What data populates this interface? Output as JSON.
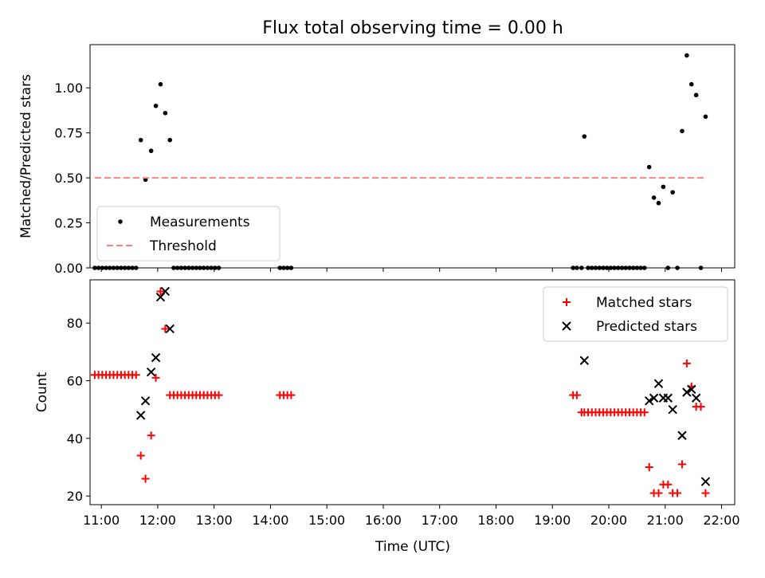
{
  "chart_data": [
    {
      "type": "scatter",
      "title": "Flux total observing time = 0.00 h",
      "xlabel": "",
      "ylabel": "Matched/Predicted stars",
      "ylim": [
        0,
        1.24
      ],
      "yticks": [
        "0.00",
        "0.25",
        "0.50",
        "0.75",
        "1.00"
      ],
      "xticks": [
        "11:00",
        "12:00",
        "13:00",
        "14:00",
        "15:00",
        "16:00",
        "17:00",
        "18:00",
        "19:00",
        "20:00",
        "21:00",
        "22:00"
      ],
      "xlim": [
        "10:48",
        "22:14"
      ],
      "legend_position": "lower-left",
      "series": [
        {
          "name": "Measurements",
          "style": "point",
          "color": "#000000",
          "points": [
            [
              "10:53",
              0
            ],
            [
              "10:57",
              0
            ],
            [
              "11:01",
              0
            ],
            [
              "11:05",
              0
            ],
            [
              "11:09",
              0
            ],
            [
              "11:13",
              0
            ],
            [
              "11:17",
              0
            ],
            [
              "11:21",
              0
            ],
            [
              "11:25",
              0
            ],
            [
              "11:29",
              0
            ],
            [
              "11:33",
              0
            ],
            [
              "11:37",
              0
            ],
            [
              "11:42",
              0.71
            ],
            [
              "11:47",
              0.49
            ],
            [
              "11:53",
              0.65
            ],
            [
              "11:58",
              0.9
            ],
            [
              "12:03",
              1.02
            ],
            [
              "12:08",
              0.86
            ],
            [
              "12:13",
              0.71
            ],
            [
              "12:17",
              0
            ],
            [
              "12:21",
              0
            ],
            [
              "12:25",
              0
            ],
            [
              "12:29",
              0
            ],
            [
              "12:33",
              0
            ],
            [
              "12:37",
              0
            ],
            [
              "12:41",
              0
            ],
            [
              "12:45",
              0
            ],
            [
              "12:49",
              0
            ],
            [
              "12:53",
              0
            ],
            [
              "12:57",
              0
            ],
            [
              "13:01",
              0
            ],
            [
              "13:05",
              0
            ],
            [
              "14:10",
              0
            ],
            [
              "14:14",
              0
            ],
            [
              "14:18",
              0
            ],
            [
              "14:22",
              0
            ],
            [
              "19:22",
              0
            ],
            [
              "19:26",
              0
            ],
            [
              "19:31",
              0
            ],
            [
              "19:34",
              0.73
            ],
            [
              "19:38",
              0
            ],
            [
              "19:42",
              0
            ],
            [
              "19:46",
              0
            ],
            [
              "19:50",
              0
            ],
            [
              "19:54",
              0
            ],
            [
              "19:58",
              0
            ],
            [
              "20:02",
              0
            ],
            [
              "20:06",
              0
            ],
            [
              "20:10",
              0
            ],
            [
              "20:14",
              0
            ],
            [
              "20:18",
              0
            ],
            [
              "20:22",
              0
            ],
            [
              "20:26",
              0
            ],
            [
              "20:30",
              0
            ],
            [
              "20:34",
              0
            ],
            [
              "20:38",
              0
            ],
            [
              "20:43",
              0.56
            ],
            [
              "20:48",
              0.39
            ],
            [
              "20:53",
              0.36
            ],
            [
              "20:58",
              0.45
            ],
            [
              "21:03",
              0
            ],
            [
              "21:08",
              0.42
            ],
            [
              "21:13",
              0
            ],
            [
              "21:18",
              0.76
            ],
            [
              "21:23",
              1.18
            ],
            [
              "21:28",
              1.02
            ],
            [
              "21:33",
              0.96
            ],
            [
              "21:38",
              0
            ],
            [
              "21:43",
              0.84
            ]
          ]
        },
        {
          "name": "Threshold",
          "style": "dashed-line",
          "color": "#ff7f7f",
          "points": [
            [
              "10:53",
              0.5
            ],
            [
              "21:43",
              0.5
            ]
          ]
        }
      ]
    },
    {
      "type": "scatter",
      "title": "",
      "xlabel": "Time (UTC)",
      "ylabel": "Count",
      "ylim": [
        17,
        95
      ],
      "yticks": [
        "20",
        "40",
        "60",
        "80"
      ],
      "xticks": [
        "11:00",
        "12:00",
        "13:00",
        "14:00",
        "15:00",
        "16:00",
        "17:00",
        "18:00",
        "19:00",
        "20:00",
        "21:00",
        "22:00"
      ],
      "xlim": [
        "10:48",
        "22:14"
      ],
      "legend_position": "upper-right",
      "series": [
        {
          "name": "Matched stars",
          "style": "plus",
          "color": "#ff0000",
          "points": [
            [
              "10:53",
              62
            ],
            [
              "10:57",
              62
            ],
            [
              "11:01",
              62
            ],
            [
              "11:05",
              62
            ],
            [
              "11:09",
              62
            ],
            [
              "11:13",
              62
            ],
            [
              "11:17",
              62
            ],
            [
              "11:21",
              62
            ],
            [
              "11:25",
              62
            ],
            [
              "11:29",
              62
            ],
            [
              "11:33",
              62
            ],
            [
              "11:37",
              62
            ],
            [
              "11:42",
              34
            ],
            [
              "11:47",
              26
            ],
            [
              "11:53",
              41
            ],
            [
              "11:58",
              61
            ],
            [
              "12:03",
              91
            ],
            [
              "12:08",
              78
            ],
            [
              "12:13",
              55
            ],
            [
              "12:17",
              55
            ],
            [
              "12:21",
              55
            ],
            [
              "12:25",
              55
            ],
            [
              "12:29",
              55
            ],
            [
              "12:33",
              55
            ],
            [
              "12:37",
              55
            ],
            [
              "12:41",
              55
            ],
            [
              "12:45",
              55
            ],
            [
              "12:49",
              55
            ],
            [
              "12:53",
              55
            ],
            [
              "12:57",
              55
            ],
            [
              "13:01",
              55
            ],
            [
              "13:05",
              55
            ],
            [
              "14:10",
              55
            ],
            [
              "14:14",
              55
            ],
            [
              "14:18",
              55
            ],
            [
              "14:22",
              55
            ],
            [
              "19:22",
              55
            ],
            [
              "19:26",
              55
            ],
            [
              "19:31",
              49
            ],
            [
              "19:34",
              49
            ],
            [
              "19:38",
              49
            ],
            [
              "19:42",
              49
            ],
            [
              "19:46",
              49
            ],
            [
              "19:50",
              49
            ],
            [
              "19:54",
              49
            ],
            [
              "19:58",
              49
            ],
            [
              "20:02",
              49
            ],
            [
              "20:06",
              49
            ],
            [
              "20:10",
              49
            ],
            [
              "20:14",
              49
            ],
            [
              "20:18",
              49
            ],
            [
              "20:22",
              49
            ],
            [
              "20:26",
              49
            ],
            [
              "20:30",
              49
            ],
            [
              "20:34",
              49
            ],
            [
              "20:38",
              49
            ],
            [
              "20:43",
              30
            ],
            [
              "20:48",
              21
            ],
            [
              "20:53",
              21
            ],
            [
              "20:58",
              24
            ],
            [
              "21:03",
              24
            ],
            [
              "21:08",
              21
            ],
            [
              "21:13",
              21
            ],
            [
              "21:18",
              31
            ],
            [
              "21:23",
              66
            ],
            [
              "21:28",
              58
            ],
            [
              "21:33",
              51
            ],
            [
              "21:38",
              51
            ],
            [
              "21:43",
              21
            ]
          ]
        },
        {
          "name": "Predicted stars",
          "style": "x",
          "color": "#000000",
          "points": [
            [
              "11:42",
              48
            ],
            [
              "11:47",
              53
            ],
            [
              "11:53",
              63
            ],
            [
              "11:58",
              68
            ],
            [
              "12:03",
              89
            ],
            [
              "12:08",
              91
            ],
            [
              "12:13",
              78
            ],
            [
              "19:34",
              67
            ],
            [
              "20:43",
              53
            ],
            [
              "20:48",
              54
            ],
            [
              "20:53",
              59
            ],
            [
              "20:58",
              54
            ],
            [
              "21:03",
              54
            ],
            [
              "21:08",
              50
            ],
            [
              "21:18",
              41
            ],
            [
              "21:23",
              56
            ],
            [
              "21:28",
              57
            ],
            [
              "21:33",
              54
            ],
            [
              "21:43",
              25
            ]
          ]
        }
      ]
    }
  ]
}
